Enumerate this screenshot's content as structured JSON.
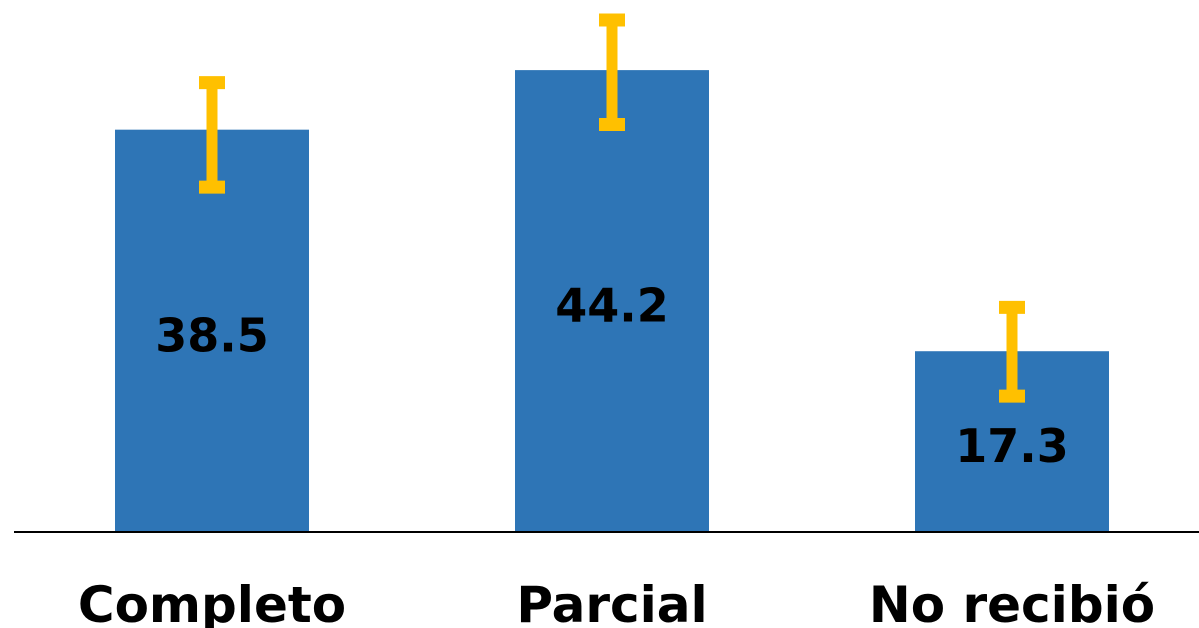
{
  "chart_data": {
    "type": "bar",
    "title": "",
    "xlabel": "",
    "ylabel": "",
    "categories": [
      "Completo",
      "Parcial",
      "No recibió"
    ],
    "values": [
      38.5,
      44.2,
      17.3
    ],
    "value_labels": [
      "38.5",
      "44.2",
      "17.3"
    ],
    "error_low": [
      33.0,
      39.0,
      13.0
    ],
    "error_high": [
      43.0,
      49.0,
      21.5
    ],
    "ylim": [
      0,
      50
    ],
    "grid": false,
    "legend": "none",
    "colors": {
      "bar": "#2E75B6",
      "error_bar": "#FFC000",
      "axis": "#000000"
    }
  }
}
